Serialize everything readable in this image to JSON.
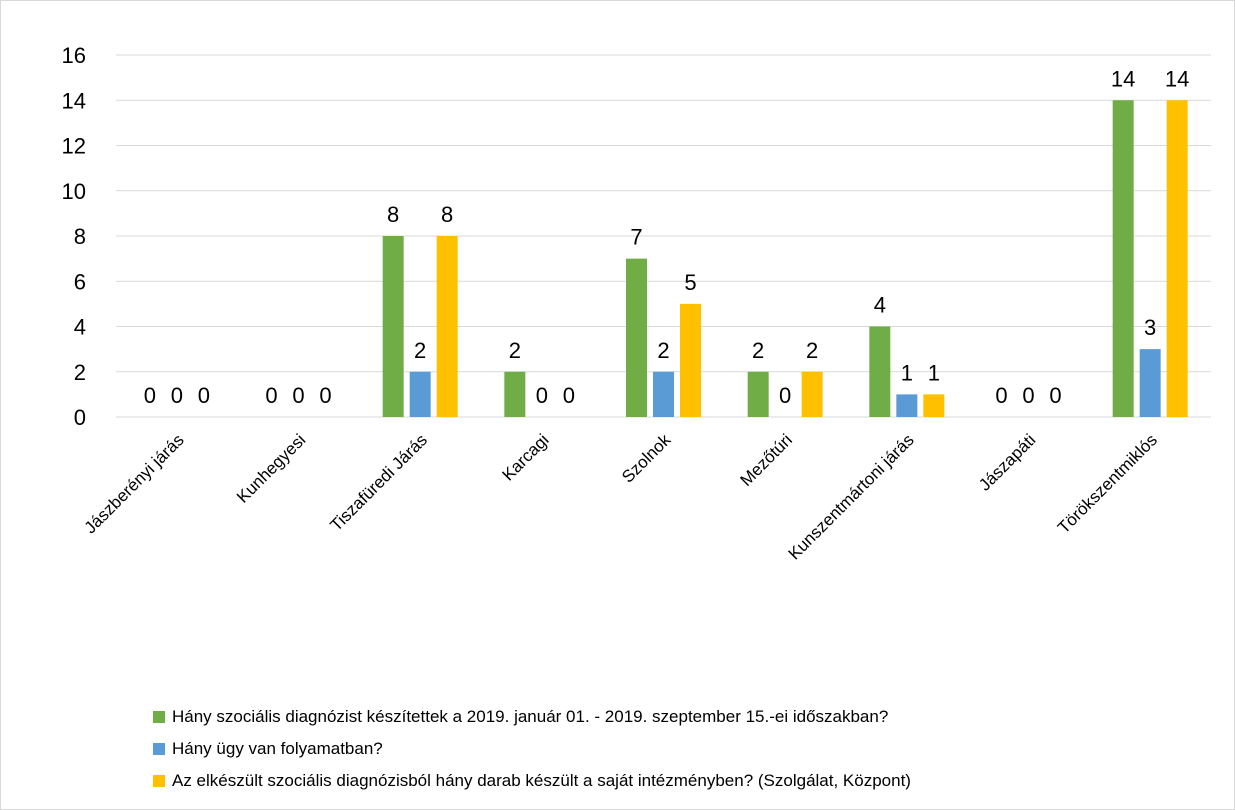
{
  "chart_data": {
    "type": "bar",
    "categories": [
      "Jászberényi járás",
      "Kunhegyesi",
      "Tiszafüredi Járás",
      "Karcagi",
      "Szolnok",
      "Mezőtúri",
      "Kunszentmártoni járás",
      "Jászapáti",
      "Törökszentmiklós"
    ],
    "series": [
      {
        "name": "Hány szociális diagnózist készítettek a 2019. január 01. - 2019. szeptember 15.-ei időszakban?",
        "color": "#70ad47",
        "values": [
          0,
          0,
          8,
          2,
          7,
          2,
          4,
          0,
          14
        ]
      },
      {
        "name": " Hány ügy van folyamatban?",
        "color": "#5b9bd5",
        "values": [
          0,
          0,
          2,
          0,
          2,
          0,
          1,
          0,
          3
        ]
      },
      {
        "name": "Az elkészült szociális diagnózisból hány darab készült a saját intézményben? (Szolgálat, Központ)",
        "color": "#ffc000",
        "values": [
          0,
          0,
          8,
          0,
          5,
          2,
          1,
          0,
          14
        ]
      }
    ],
    "yticks": [
      "0",
      "2",
      "4",
      "6",
      "8",
      "10",
      "12",
      "14",
      "16"
    ],
    "ylim": [
      0,
      16
    ],
    "grid": true,
    "data_labels": true,
    "legend_position": "bottom",
    "title": "",
    "xlabel": "",
    "ylabel": ""
  }
}
